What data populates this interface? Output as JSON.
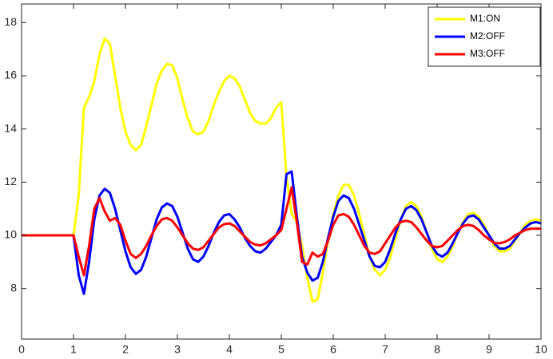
{
  "chart_data": {
    "type": "line",
    "x": [
      0,
      0.1,
      0.2,
      0.3,
      0.4,
      0.5,
      0.6,
      0.7,
      0.8,
      0.9,
      1,
      1.1,
      1.2,
      1.3,
      1.4,
      1.5,
      1.6,
      1.7,
      1.8,
      1.9,
      2,
      2.1,
      2.2,
      2.3,
      2.4,
      2.5,
      2.6,
      2.7,
      2.8,
      2.9,
      3,
      3.1,
      3.2,
      3.3,
      3.4,
      3.5,
      3.6,
      3.7,
      3.8,
      3.9,
      4,
      4.1,
      4.2,
      4.3,
      4.4,
      4.5,
      4.6,
      4.7,
      4.8,
      4.9,
      5,
      5.1,
      5.2,
      5.3,
      5.4,
      5.5,
      5.6,
      5.7,
      5.8,
      5.9,
      6,
      6.1,
      6.2,
      6.3,
      6.4,
      6.5,
      6.6,
      6.7,
      6.8,
      6.9,
      7,
      7.1,
      7.2,
      7.3,
      7.4,
      7.5,
      7.6,
      7.7,
      7.8,
      7.9,
      8,
      8.1,
      8.2,
      8.3,
      8.4,
      8.5,
      8.6,
      8.7,
      8.8,
      8.9,
      9,
      9.1,
      9.2,
      9.3,
      9.4,
      9.5,
      9.6,
      9.7,
      9.8,
      9.9,
      10
    ],
    "series": [
      {
        "name": "M1:ON",
        "color": "#ffff00",
        "values": [
          10,
          10,
          10,
          10,
          10,
          10,
          10,
          10,
          10,
          10,
          10,
          11.5,
          14.8,
          15.2,
          15.8,
          16.8,
          17.4,
          17.2,
          16.0,
          14.8,
          13.9,
          13.4,
          13.2,
          13.4,
          14.1,
          14.9,
          15.7,
          16.2,
          16.45,
          16.4,
          15.9,
          15.1,
          14.4,
          13.9,
          13.8,
          13.9,
          14.3,
          14.9,
          15.4,
          15.8,
          16.0,
          15.9,
          15.6,
          15.1,
          14.6,
          14.3,
          14.2,
          14.2,
          14.4,
          14.8,
          15.0,
          12.2,
          10.8,
          10.5,
          9.6,
          8.4,
          7.5,
          7.6,
          8.6,
          9.8,
          10.8,
          11.5,
          11.9,
          11.9,
          11.5,
          10.8,
          10.0,
          9.2,
          8.7,
          8.5,
          8.7,
          9.2,
          9.9,
          10.6,
          11.1,
          11.25,
          11.1,
          10.7,
          10.1,
          9.5,
          9.1,
          9.0,
          9.2,
          9.6,
          10.1,
          10.5,
          10.8,
          10.85,
          10.7,
          10.4,
          10.0,
          9.6,
          9.4,
          9.4,
          9.5,
          9.8,
          10.1,
          10.4,
          10.55,
          10.6,
          10.55
        ]
      },
      {
        "name": "M2:OFF",
        "color": "#0000ff",
        "values": [
          10,
          10,
          10,
          10,
          10,
          10,
          10,
          10,
          10,
          10,
          10,
          8.5,
          7.8,
          9.0,
          10.6,
          11.5,
          11.75,
          11.6,
          11.0,
          10.2,
          9.4,
          8.8,
          8.55,
          8.7,
          9.2,
          9.9,
          10.6,
          11.05,
          11.2,
          11.1,
          10.7,
          10.1,
          9.5,
          9.1,
          9.0,
          9.2,
          9.6,
          10.1,
          10.5,
          10.75,
          10.8,
          10.6,
          10.3,
          9.9,
          9.6,
          9.4,
          9.35,
          9.5,
          9.75,
          10.0,
          10.4,
          12.3,
          12.4,
          10.7,
          9.2,
          8.6,
          8.3,
          8.4,
          9.0,
          9.9,
          10.7,
          11.3,
          11.5,
          11.4,
          11.0,
          10.4,
          9.8,
          9.2,
          8.85,
          8.8,
          9.0,
          9.5,
          10.1,
          10.6,
          11.0,
          11.1,
          10.95,
          10.6,
          10.1,
          9.6,
          9.3,
          9.2,
          9.35,
          9.7,
          10.1,
          10.45,
          10.7,
          10.75,
          10.6,
          10.3,
          10.0,
          9.7,
          9.5,
          9.5,
          9.6,
          9.85,
          10.1,
          10.3,
          10.45,
          10.5,
          10.45
        ]
      },
      {
        "name": "M3:OFF",
        "color": "#ff0000",
        "values": [
          10,
          10,
          10,
          10,
          10,
          10,
          10,
          10,
          10,
          10,
          10,
          9.2,
          8.5,
          9.6,
          11.0,
          11.4,
          10.9,
          10.55,
          10.65,
          10.4,
          9.8,
          9.3,
          9.15,
          9.3,
          9.6,
          10.0,
          10.35,
          10.6,
          10.65,
          10.55,
          10.3,
          10.0,
          9.7,
          9.5,
          9.45,
          9.55,
          9.8,
          10.05,
          10.3,
          10.42,
          10.45,
          10.35,
          10.15,
          9.95,
          9.75,
          9.65,
          9.62,
          9.7,
          9.85,
          10.0,
          10.2,
          11.0,
          11.8,
          10.5,
          9.0,
          8.9,
          9.35,
          9.2,
          9.3,
          9.8,
          10.4,
          10.75,
          10.8,
          10.7,
          10.4,
          10.0,
          9.6,
          9.35,
          9.3,
          9.4,
          9.7,
          10.0,
          10.3,
          10.5,
          10.55,
          10.5,
          10.3,
          10.05,
          9.8,
          9.6,
          9.55,
          9.6,
          9.8,
          10.0,
          10.2,
          10.35,
          10.4,
          10.35,
          10.2,
          10.0,
          9.85,
          9.72,
          9.7,
          9.75,
          9.85,
          10.0,
          10.1,
          10.2,
          10.25,
          10.25,
          10.25
        ]
      }
    ],
    "xlim": [
      0,
      10
    ],
    "xticks": [
      0,
      1,
      2,
      3,
      4,
      5,
      6,
      7,
      8,
      9,
      10
    ],
    "ylim": [
      6.1,
      18.7
    ],
    "yticks": [
      8,
      10,
      12,
      14,
      16,
      18
    ],
    "grid": false,
    "legend": "upper-right",
    "line_width": 3
  }
}
